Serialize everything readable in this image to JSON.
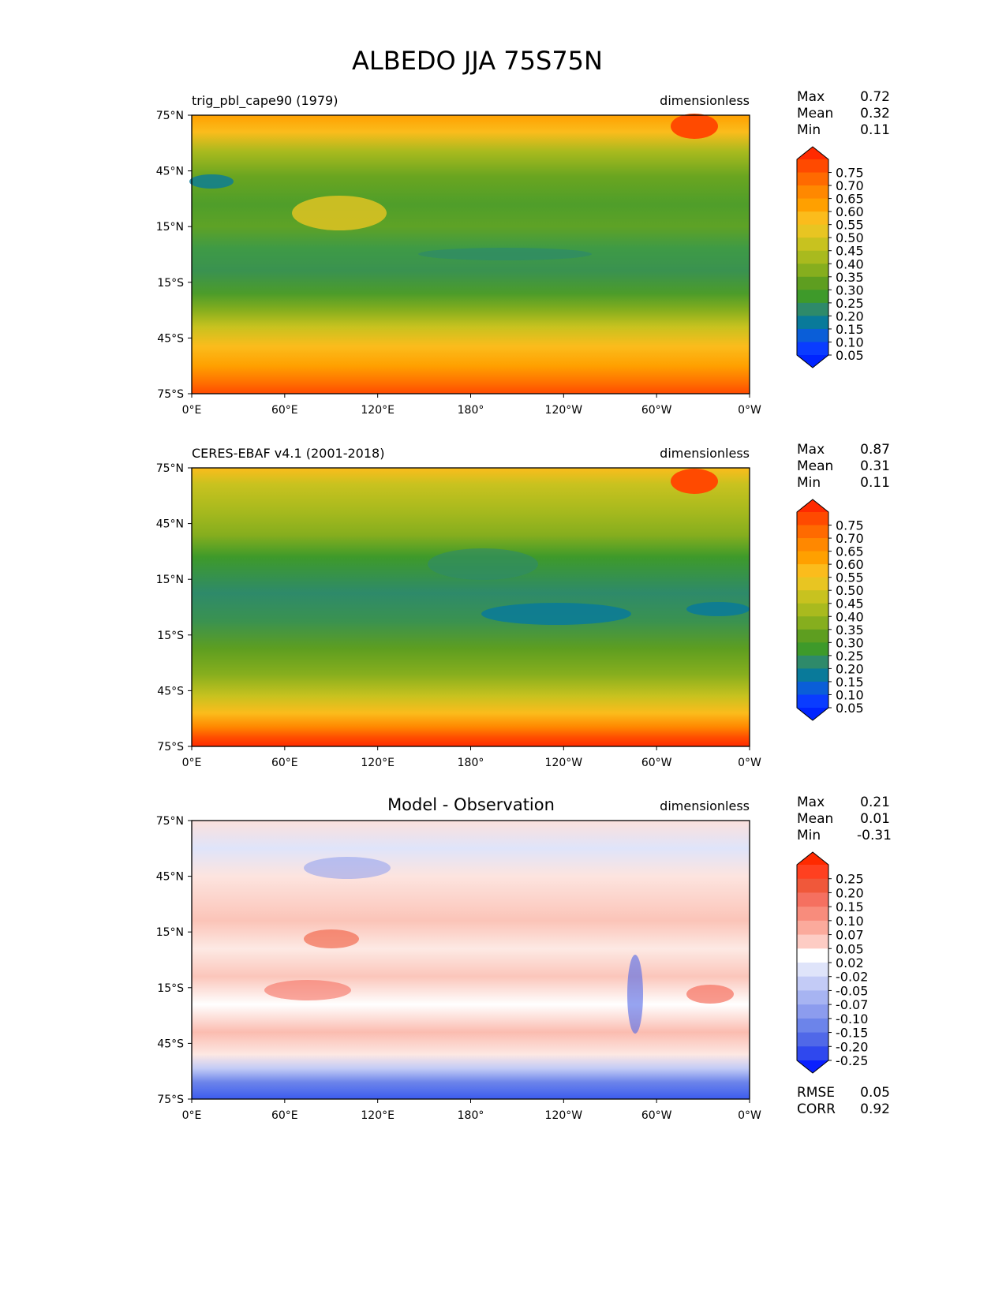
{
  "title": "ALBEDO JJA 75S75N",
  "lat_ticks": [
    "75°N",
    "45°N",
    "15°N",
    "15°S",
    "45°S",
    "75°S"
  ],
  "lon_ticks": [
    "0°E",
    "60°E",
    "120°E",
    "180°",
    "120°W",
    "60°W",
    "0°W"
  ],
  "colorbar_absolute": {
    "labels": [
      "0.75",
      "0.70",
      "0.65",
      "0.60",
      "0.55",
      "0.50",
      "0.45",
      "0.40",
      "0.35",
      "0.30",
      "0.25",
      "0.20",
      "0.15",
      "0.10",
      "0.05"
    ],
    "colors": [
      "#ff2a00",
      "#ff4a00",
      "#ff6a00",
      "#ff8800",
      "#ffa000",
      "#fbbc1c",
      "#e8c522",
      "#c8c21f",
      "#a9ba1e",
      "#86ae1e",
      "#5e9e20",
      "#3e9a2a",
      "#2e8a6a",
      "#097a9a",
      "#0a5ed8",
      "#0a3cff",
      "#0024ff"
    ]
  },
  "colorbar_difference": {
    "labels": [
      "0.25",
      "0.20",
      "0.15",
      "0.10",
      "0.07",
      "0.05",
      "0.02",
      "-0.02",
      "-0.05",
      "-0.07",
      "-0.10",
      "-0.15",
      "-0.20",
      "-0.25"
    ],
    "colors": [
      "#ff2a00",
      "#ff4020",
      "#f0583a",
      "#f57060",
      "#f88c7c",
      "#fbaa9c",
      "#fdccc4",
      "#ffffff",
      "#dfe4fa",
      "#c3cbf6",
      "#a7b4f2",
      "#8c9cee",
      "#6c84ea",
      "#5068e8",
      "#2f48ee",
      "#0a20ff"
    ]
  },
  "chart_data": [
    {
      "type": "heatmap",
      "panel": "model",
      "subtitle": "trig_pbl_cape90 (1979)",
      "units": "dimensionless",
      "stats": {
        "max_label": "Max",
        "max": "0.72",
        "mean_label": "Mean",
        "mean": "0.32",
        "min_label": "Min",
        "min": "0.11"
      },
      "xlim": [
        0,
        360
      ],
      "ylim": [
        -75,
        75
      ],
      "colorbar": "absolute"
    },
    {
      "type": "heatmap",
      "panel": "observation",
      "subtitle": "CERES-EBAF v4.1 (2001-2018)",
      "units": "dimensionless",
      "stats": {
        "max_label": "Max",
        "max": "0.87",
        "mean_label": "Mean",
        "mean": "0.31",
        "min_label": "Min",
        "min": "0.11"
      },
      "xlim": [
        0,
        360
      ],
      "ylim": [
        -75,
        75
      ],
      "colorbar": "absolute"
    },
    {
      "type": "heatmap",
      "panel": "difference",
      "subtitle": "Model - Observation",
      "units": "dimensionless",
      "stats": {
        "max_label": "Max",
        "max": "0.21",
        "mean_label": "Mean",
        "mean": "0.01",
        "min_label": "Min",
        "min": "-0.31"
      },
      "extra_stats": {
        "rmse_label": "RMSE",
        "rmse": "0.05",
        "corr_label": "CORR",
        "corr": "0.92"
      },
      "xlim": [
        0,
        360
      ],
      "ylim": [
        -75,
        75
      ],
      "colorbar": "difference"
    }
  ]
}
